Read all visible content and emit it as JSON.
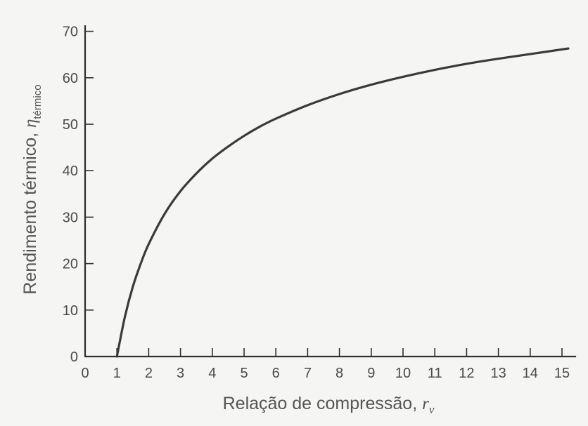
{
  "chart_data": {
    "type": "line",
    "title": "",
    "xlabel": "Relação de compressão, ",
    "xlabel_symbol": "r",
    "xlabel_subscript": "v",
    "ylabel": "Rendimento térmico, ",
    "ylabel_symbol": "η",
    "ylabel_subscript": "térmico",
    "xlim": [
      0,
      15.4
    ],
    "ylim": [
      0,
      71
    ],
    "x_ticks": [
      "0",
      "1",
      "2",
      "3",
      "4",
      "5",
      "6",
      "7",
      "8",
      "9",
      "10",
      "11",
      "12",
      "13",
      "14",
      "15"
    ],
    "y_ticks": [
      "0",
      "10",
      "20",
      "30",
      "40",
      "50",
      "60",
      "70"
    ],
    "grid": false,
    "legend": "none",
    "series": [
      {
        "color": "#3a3a3a",
        "x": [
          1,
          1.25,
          1.5,
          1.75,
          2,
          2.5,
          3,
          3.5,
          4,
          4.5,
          5,
          5.5,
          6,
          7,
          8,
          9,
          10,
          11,
          12,
          13,
          14,
          15.2
        ],
        "y": [
          0,
          8.5,
          15,
          20,
          24.2,
          30.7,
          35.6,
          39.4,
          42.6,
          45.2,
          47.5,
          49.5,
          51.2,
          54.1,
          56.5,
          58.5,
          60.2,
          61.7,
          63,
          64.1,
          65.1,
          66.3
        ]
      }
    ]
  }
}
